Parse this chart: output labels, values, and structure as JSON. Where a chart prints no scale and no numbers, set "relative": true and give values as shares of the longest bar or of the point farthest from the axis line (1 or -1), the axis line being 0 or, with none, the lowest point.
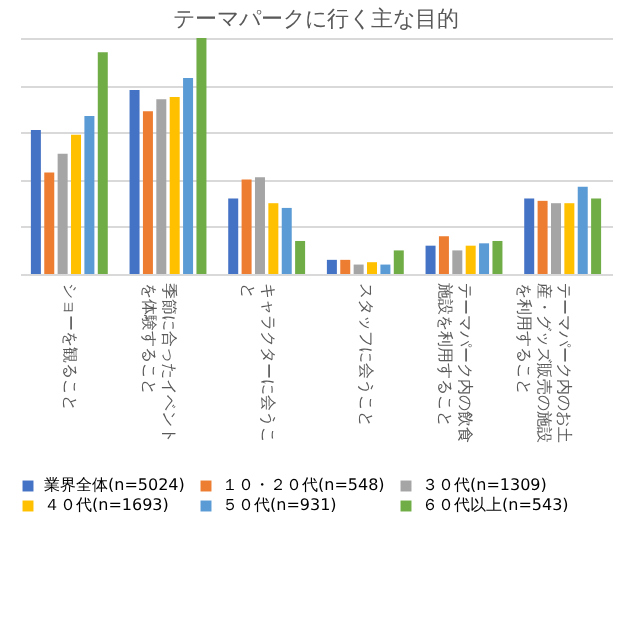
{
  "chart_data": {
    "type": "bar",
    "title": "テーマパークに行く主な目的",
    "relative": true,
    "grid": "y",
    "legend": "bottom",
    "categories": [
      "ショーを観ること",
      "季節に合ったイベントを体験すること",
      "キャラクターに会うこと",
      "スタッフに会うこと",
      "テーマパーク内の飲食施設を利用すること",
      "テーマパーク内のお土産・グッズ販売の施設を利用すること"
    ],
    "series": [
      {
        "name": "業界全体(n=5024)",
        "color": "#4472c4",
        "values": [
          0.61,
          0.78,
          0.32,
          0.06,
          0.12,
          0.32
        ]
      },
      {
        "name": "１０・２０代(n=548)",
        "color": "#ed7d31",
        "values": [
          0.43,
          0.69,
          0.4,
          0.06,
          0.16,
          0.31
        ]
      },
      {
        "name": "３０代(n=1309)",
        "color": "#a5a5a5",
        "values": [
          0.51,
          0.74,
          0.41,
          0.04,
          0.1,
          0.3
        ]
      },
      {
        "name": "４０代(n=1693)",
        "color": "#ffc000",
        "values": [
          0.59,
          0.75,
          0.3,
          0.05,
          0.12,
          0.3
        ]
      },
      {
        "name": "５０代(n=931)",
        "color": "#5b9bd5",
        "values": [
          0.67,
          0.83,
          0.28,
          0.04,
          0.13,
          0.37
        ]
      },
      {
        "name": "６０代以上(n=543)",
        "color": "#70ad47",
        "values": [
          0.94,
          1.0,
          0.14,
          0.1,
          0.14,
          0.32
        ]
      }
    ]
  }
}
